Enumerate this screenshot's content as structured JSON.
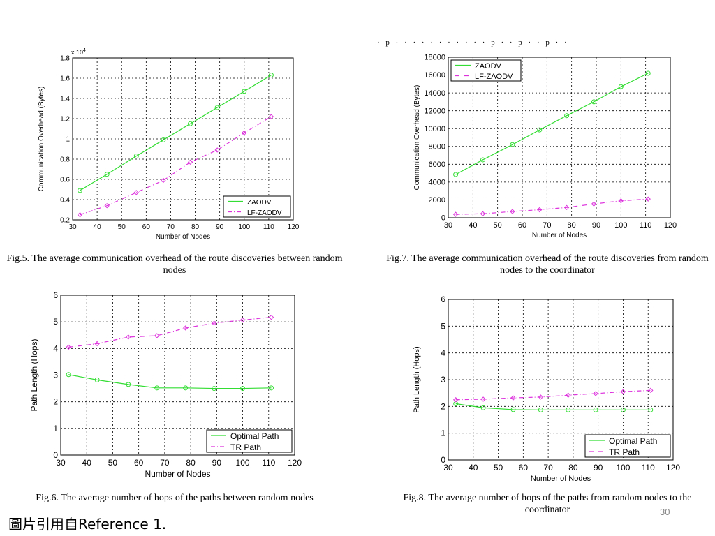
{
  "colors": {
    "zaodv": "#33dd33",
    "lfzaodv": "#dd33dd"
  },
  "captions": {
    "fig5": "Fig.5. The average communication overhead of the route discoveries between random nodes",
    "fig6": "Fig.6. The average number of hops of the paths between random nodes",
    "fig7": "Fig.7. The average communication overhead of the route discoveries from random nodes to the coordinator",
    "fig8": "Fig.8. The average number of hops of the paths from random nodes to the coordinator"
  },
  "footer": {
    "note": "圖片引用自Reference 1.",
    "page": "30"
  },
  "top_fragment": "· p · · · · · · · · · · · p · · p · · p · ·",
  "chart_data": [
    {
      "id": "fig5",
      "type": "line",
      "xlabel": "Number of Nodes",
      "ylabel": "Communication Overhead (Bytes)",
      "y_exponent": "x 10^4",
      "xlim": [
        30,
        120
      ],
      "ylim": [
        0.2,
        1.8
      ],
      "xticks": [
        30,
        40,
        50,
        60,
        70,
        80,
        90,
        100,
        110,
        120
      ],
      "yticks": [
        0.2,
        0.4,
        0.6,
        0.8,
        1,
        1.2,
        1.4,
        1.6,
        1.8
      ],
      "grid": true,
      "legend_position": "bottom-right",
      "x": [
        33,
        44,
        56,
        67,
        78,
        89,
        100,
        111
      ],
      "series": [
        {
          "name": "ZAODV",
          "style": "solid",
          "color": "#33dd33",
          "values": [
            0.49,
            0.65,
            0.83,
            0.99,
            1.15,
            1.31,
            1.47,
            1.63
          ]
        },
        {
          "name": "LF-ZAODV",
          "style": "dashdot",
          "color": "#dd33dd",
          "values": [
            0.25,
            0.34,
            0.47,
            0.59,
            0.77,
            0.89,
            1.06,
            1.22
          ]
        }
      ]
    },
    {
      "id": "fig7",
      "type": "line",
      "xlabel": "Number of Nodes",
      "ylabel": "Communication  Overhead (Bytes)",
      "xlim": [
        30,
        120
      ],
      "ylim": [
        0,
        18000
      ],
      "xticks": [
        30,
        40,
        50,
        60,
        70,
        80,
        90,
        100,
        110,
        120
      ],
      "yticks": [
        0,
        2000,
        4000,
        6000,
        8000,
        10000,
        12000,
        14000,
        16000,
        18000
      ],
      "grid": true,
      "legend_position": "top-left",
      "x": [
        33,
        44,
        56,
        67,
        78,
        89,
        100,
        111
      ],
      "series": [
        {
          "name": "ZAODV",
          "style": "solid",
          "color": "#33dd33",
          "values": [
            4850,
            6500,
            8200,
            9850,
            11450,
            13000,
            14700,
            16200
          ]
        },
        {
          "name": "LF-ZAODV",
          "style": "dashdot",
          "color": "#dd33dd",
          "values": [
            380,
            450,
            700,
            900,
            1150,
            1550,
            1900,
            2100
          ]
        }
      ]
    },
    {
      "id": "fig6",
      "type": "line",
      "xlabel": "Number of Nodes",
      "ylabel": "Path Length (Hops)",
      "xlim": [
        30,
        120
      ],
      "ylim": [
        0,
        6
      ],
      "xticks": [
        30,
        40,
        50,
        60,
        70,
        80,
        90,
        100,
        110,
        120
      ],
      "yticks": [
        0,
        1,
        2,
        3,
        4,
        5,
        6
      ],
      "grid": true,
      "legend_position": "bottom-right",
      "x": [
        33,
        44,
        56,
        67,
        78,
        89,
        100,
        111
      ],
      "series": [
        {
          "name": "Optimal Path",
          "style": "solid",
          "color": "#33dd33",
          "values": [
            3.02,
            2.82,
            2.65,
            2.52,
            2.52,
            2.5,
            2.5,
            2.52
          ]
        },
        {
          "name": "TR Path",
          "style": "dashdot",
          "color": "#dd33dd",
          "values": [
            4.05,
            4.18,
            4.43,
            4.48,
            4.77,
            4.95,
            5.07,
            5.17
          ]
        }
      ]
    },
    {
      "id": "fig8",
      "type": "line",
      "xlabel": "Number of Nodes",
      "ylabel": "Path Length (Hops)",
      "xlim": [
        30,
        120
      ],
      "ylim": [
        0,
        6
      ],
      "xticks": [
        30,
        40,
        50,
        60,
        70,
        80,
        90,
        100,
        110,
        120
      ],
      "yticks": [
        0,
        1,
        2,
        3,
        4,
        5,
        6
      ],
      "grid": true,
      "legend_position": "bottom-right",
      "x": [
        33,
        44,
        56,
        67,
        78,
        89,
        100,
        111
      ],
      "series": [
        {
          "name": "Optimal Path",
          "style": "solid",
          "color": "#33dd33",
          "values": [
            2.1,
            1.95,
            1.88,
            1.87,
            1.87,
            1.87,
            1.87,
            1.87
          ]
        },
        {
          "name": "TR Path",
          "style": "dashdot",
          "color": "#dd33dd",
          "values": [
            2.25,
            2.27,
            2.32,
            2.35,
            2.42,
            2.48,
            2.55,
            2.6
          ]
        }
      ]
    }
  ]
}
